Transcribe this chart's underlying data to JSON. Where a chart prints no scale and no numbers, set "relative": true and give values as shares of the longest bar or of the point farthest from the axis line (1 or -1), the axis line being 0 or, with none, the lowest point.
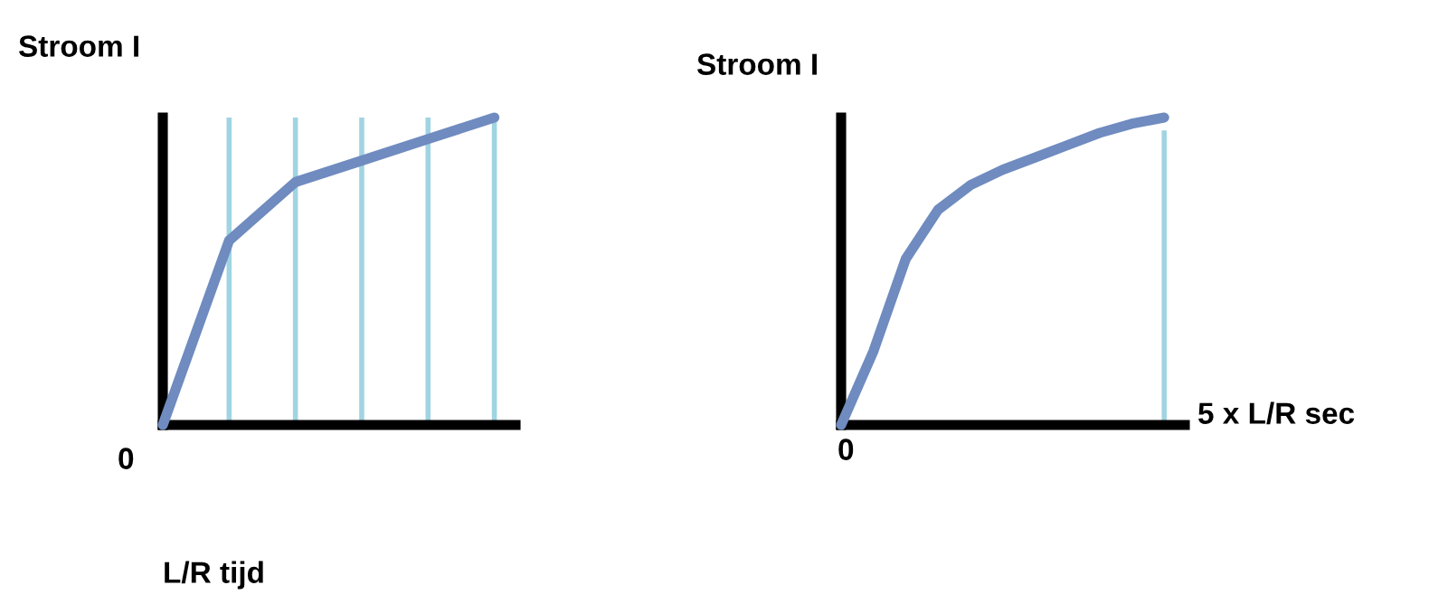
{
  "chart_data": [
    {
      "type": "line",
      "relative": true,
      "ylabel": "Stroom I",
      "xlabel": "L/R tijd",
      "annotations": [
        "0"
      ],
      "marker": "none",
      "line_style": "solid",
      "grid": "x",
      "categories": [
        null,
        null,
        null,
        null,
        null,
        null
      ],
      "series": [
        {
          "color": "#6f8bbf",
          "values": [
            0,
            0.6,
            0.79,
            0.86,
            0.93,
            1.0
          ]
        }
      ]
    },
    {
      "type": "line",
      "relative": true,
      "ylabel": "Stroom I",
      "xlabel": "5 x L/R sec",
      "annotations": [
        "0"
      ],
      "marker": "none",
      "line_style": "solid",
      "categories": [
        null,
        null,
        null,
        null,
        null,
        null,
        null,
        null,
        null,
        null,
        null
      ],
      "series": [
        {
          "color": "#6f8bbf",
          "values": [
            0,
            0.24,
            0.54,
            0.7,
            0.78,
            0.83,
            0.87,
            0.91,
            0.95,
            0.98,
            1.0
          ]
        }
      ]
    }
  ]
}
